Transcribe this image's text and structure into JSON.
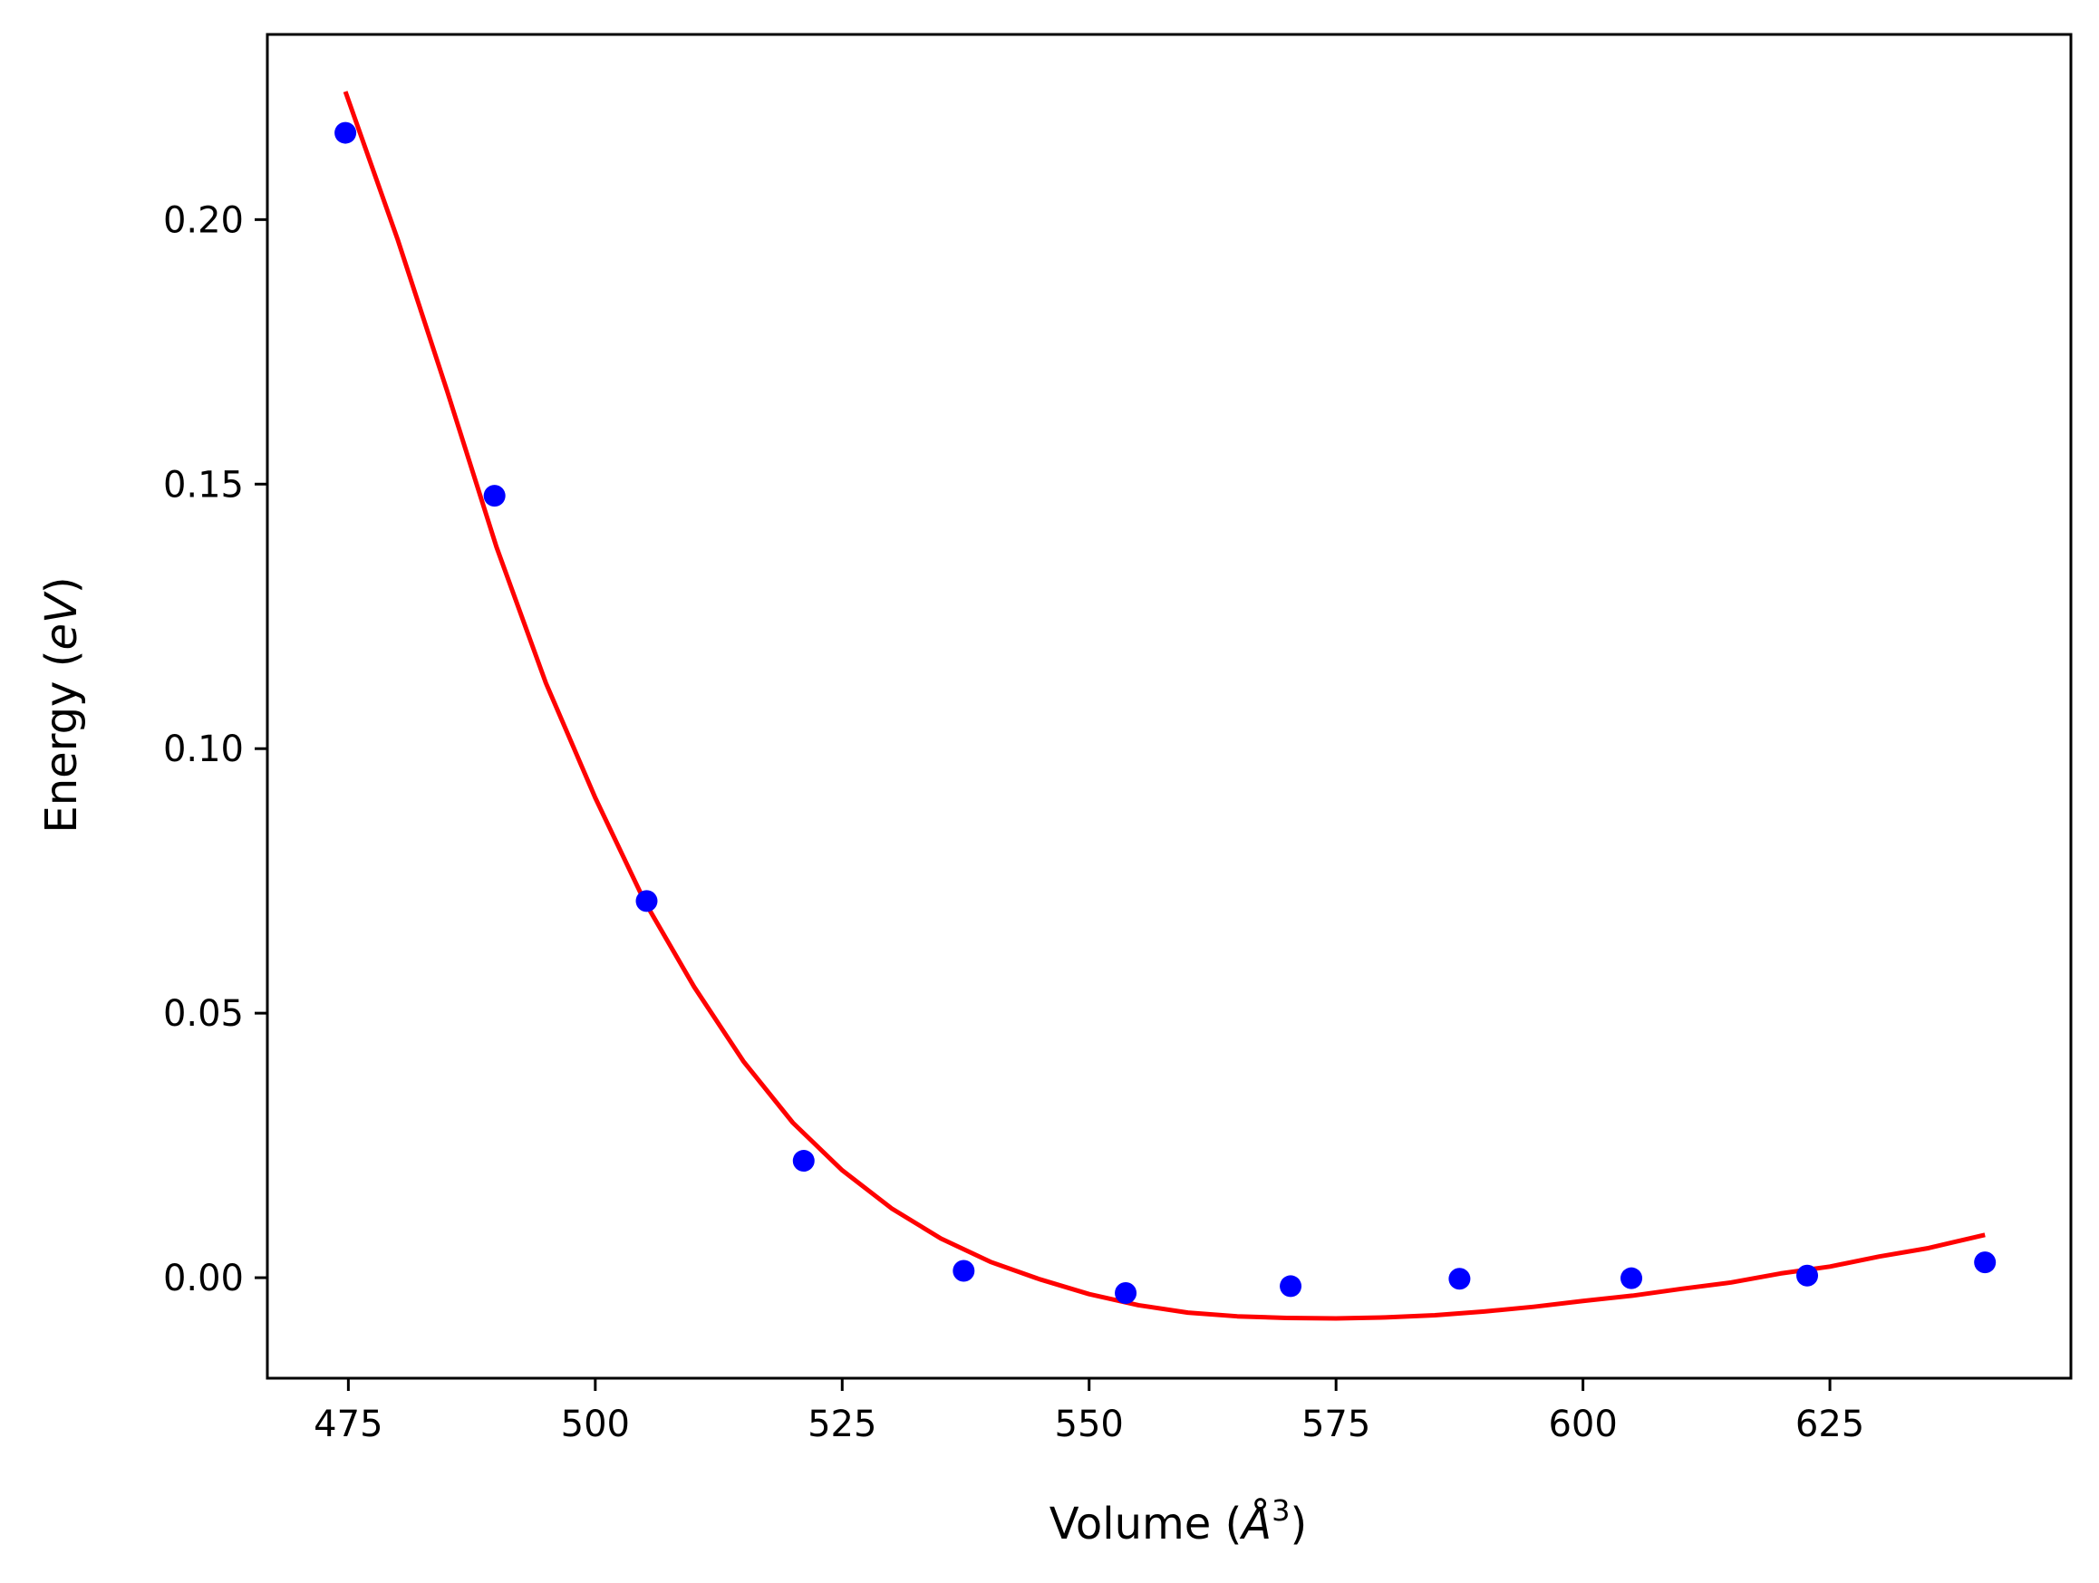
{
  "chart_data": {
    "type": "scatter",
    "title": "",
    "xlabel": "Volume",
    "xlabel_unit": "Å",
    "xlabel_unit_exponent": "3",
    "ylabel": "Energy",
    "ylabel_unit": "eV",
    "xlim": [
      466.8,
      649.4
    ],
    "ylim": [
      -0.019,
      0.235
    ],
    "x_ticks": [
      475,
      500,
      525,
      550,
      575,
      600,
      625
    ],
    "x_tick_labels": [
      "475",
      "500",
      "525",
      "550",
      "575",
      "600",
      "625"
    ],
    "y_ticks": [
      0.0,
      0.05,
      0.1,
      0.15,
      0.2
    ],
    "y_tick_labels": [
      "0.00",
      "0.05",
      "0.10",
      "0.15",
      "0.20"
    ],
    "grid": false,
    "legend": "none",
    "series": [
      {
        "kind": "points",
        "color": "#0000ff",
        "x": [
          474.7,
          489.8,
          505.2,
          521.1,
          537.3,
          553.7,
          570.4,
          587.5,
          604.9,
          622.7,
          640.7
        ],
        "y": [
          0.2164,
          0.1478,
          0.0712,
          0.0221,
          0.0013,
          -0.0029,
          -0.0016,
          -0.0002,
          -0.0001,
          0.0004,
          0.0029
        ]
      },
      {
        "kind": "fit-line",
        "color": "#ff0000",
        "x": [
          474.7,
          480,
          485,
          490,
          495,
          500,
          505,
          510,
          515,
          520,
          525,
          530,
          535,
          540,
          545,
          550,
          555,
          560,
          565,
          570,
          575,
          580,
          585,
          590,
          595,
          600,
          605,
          610,
          615,
          620,
          625,
          630,
          635,
          640.7
        ],
        "y": [
          0.2242,
          0.1962,
          0.1676,
          0.1381,
          0.1124,
          0.0907,
          0.0711,
          0.055,
          0.0409,
          0.0293,
          0.0203,
          0.0131,
          0.0074,
          0.003,
          -0.0003,
          -0.0031,
          -0.0052,
          -0.0066,
          -0.0073,
          -0.0076,
          -0.0077,
          -0.0075,
          -0.0071,
          -0.0064,
          -0.0055,
          -0.0044,
          -0.0034,
          -0.0021,
          -0.0009,
          0.0008,
          0.0021,
          0.004,
          0.0056,
          0.0081
        ]
      }
    ]
  }
}
